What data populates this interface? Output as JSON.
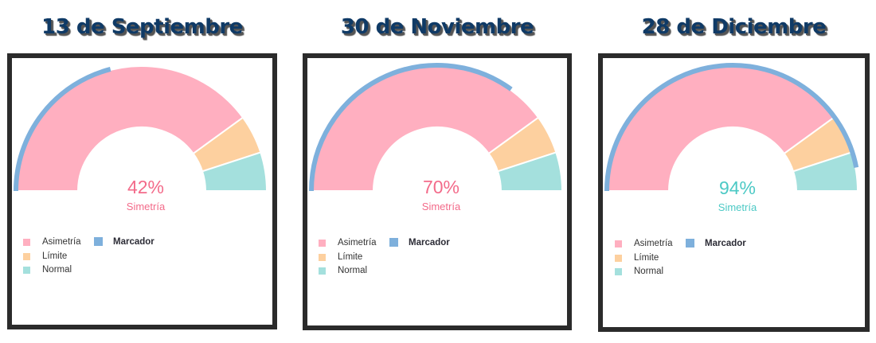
{
  "colors": {
    "asimetria": "#ffafc0",
    "limite": "#fdd09f",
    "normal": "#a4e0dd",
    "marcador": "#7eb0dc",
    "title": "#0f3a66",
    "border": "#2b2b2b",
    "pink_text": "#f36b8a",
    "teal_text": "#4cc9c5"
  },
  "panels": [
    {
      "title": "13 de Septiembre",
      "value": "42%",
      "label": "Simetría",
      "legend": [
        "Asimetría",
        "Límite",
        "Normal",
        "Marcador"
      ]
    },
    {
      "title": "30 de Noviembre",
      "value": "70%",
      "label": "Simetría",
      "legend": [
        "Asimetría",
        "Límite",
        "Normal",
        "Marcador"
      ]
    },
    {
      "title": "28 de Diciembre",
      "value": "94%",
      "label": "Simetría",
      "legend": [
        "Asimetría",
        "Límite",
        "Normal",
        "Marcador"
      ]
    }
  ],
  "chart_data": [
    {
      "type": "pie",
      "subtype": "half-donut gauge",
      "title": "13 de Septiembre",
      "categories": [
        "Asimetría",
        "Límite",
        "Normal"
      ],
      "values": [
        80,
        10,
        10
      ],
      "marker": {
        "name": "Marcador",
        "value": 42
      },
      "center_text": "42%",
      "center_label": "Simetría",
      "legend_position": "bottom-left"
    },
    {
      "type": "pie",
      "subtype": "half-donut gauge",
      "title": "30 de Noviembre",
      "categories": [
        "Asimetría",
        "Límite",
        "Normal"
      ],
      "values": [
        80,
        10,
        10
      ],
      "marker": {
        "name": "Marcador",
        "value": 70
      },
      "center_text": "70%",
      "center_label": "Simetría",
      "legend_position": "bottom-left"
    },
    {
      "type": "pie",
      "subtype": "half-donut gauge",
      "title": "28 de Diciembre",
      "categories": [
        "Asimetría",
        "Límite",
        "Normal"
      ],
      "values": [
        80,
        10,
        10
      ],
      "marker": {
        "name": "Marcador",
        "value": 94
      },
      "center_text": "94%",
      "center_label": "Simetría",
      "legend_position": "bottom-left"
    }
  ]
}
